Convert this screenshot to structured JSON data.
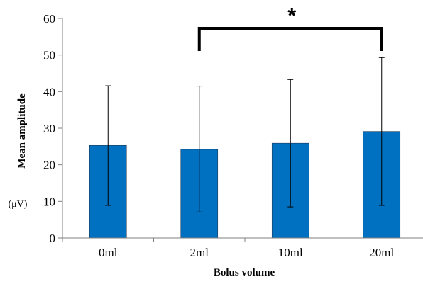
{
  "chart_data": {
    "type": "bar",
    "title": "",
    "xlabel": "Bolus volume",
    "ylabel": "Mean amplitude",
    "yunit": "(μV)",
    "ylim": [
      0,
      60
    ],
    "yticks": [
      0,
      10,
      20,
      30,
      40,
      50,
      60
    ],
    "categories": [
      "0ml",
      "2ml",
      "10ml",
      "20ml"
    ],
    "values": [
      25.3,
      24.2,
      25.9,
      29.1
    ],
    "error_upper": [
      41.6,
      41.5,
      43.3,
      49.3
    ],
    "error_lower": [
      8.9,
      7.1,
      8.5,
      8.9
    ],
    "bar_color": "#0070C0",
    "grid": false,
    "legend": "none",
    "annotations": [
      {
        "text": "*",
        "type": "significance-bracket",
        "from_category": "2ml",
        "to_category": "20ml",
        "y": 52
      }
    ]
  }
}
